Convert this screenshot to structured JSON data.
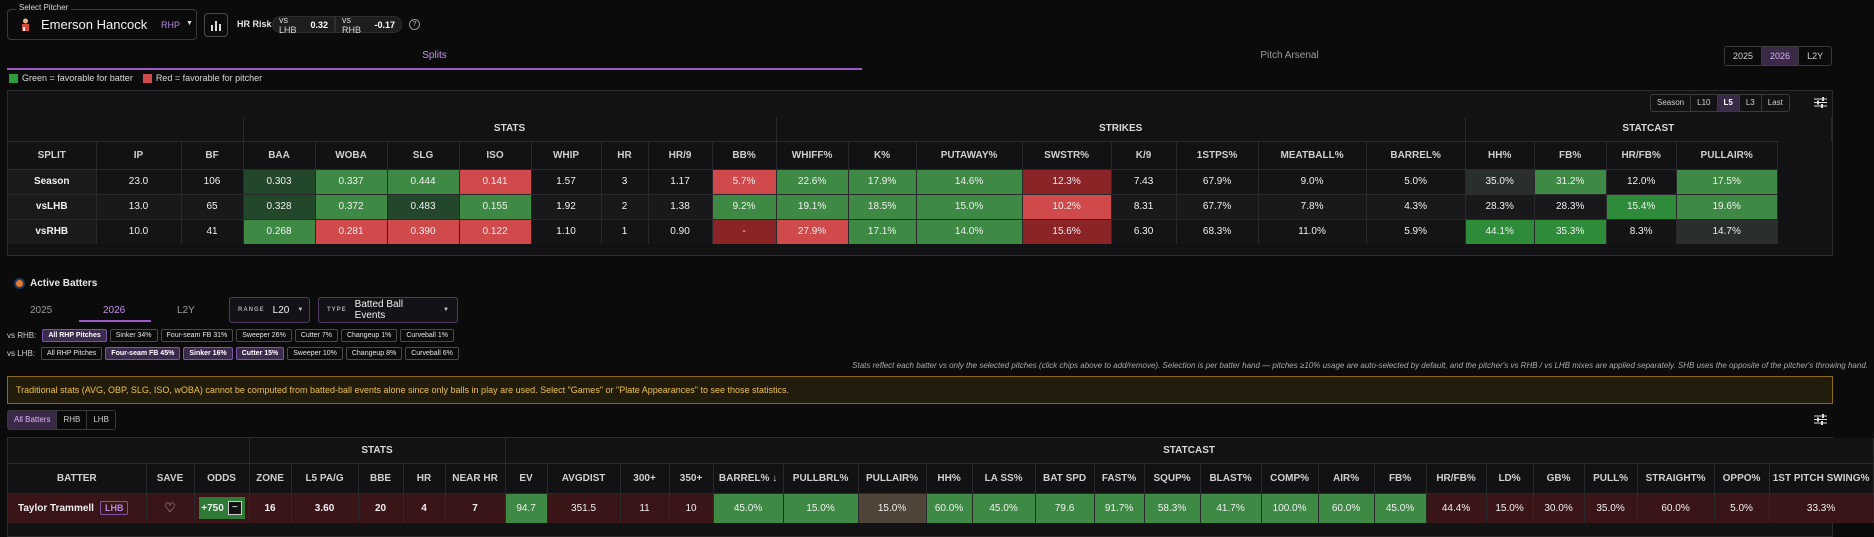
{
  "pitcher": {
    "legend": "Select Pitcher",
    "name": "Emerson Hancock",
    "hand": "RHP",
    "hr_risk_label": "HR Risk",
    "risk_lhb_label": "vs LHB",
    "risk_lhb_value": "0.32",
    "risk_rhb_label": "vs RHB",
    "risk_rhb_value": "-0.17"
  },
  "main_tabs": {
    "splits": "Splits",
    "arsenal": "Pitch Arsenal"
  },
  "season_years": [
    "2025",
    "2026",
    "L2Y"
  ],
  "legend": {
    "green": "Green = favorable for batter",
    "red": "Red = favorable for pitcher"
  },
  "colors": {
    "green_bright": "#2e8b3a",
    "green_mid": "#3e8a45",
    "green_dark": "#23472a",
    "red_bright": "#d0494b",
    "red_dark": "#8a2427",
    "neutral": "#17171a",
    "accent": "#9b59c9"
  },
  "split_ranges": [
    "Season",
    "L10",
    "L5",
    "L3",
    "Last"
  ],
  "splits": {
    "groups": [
      "STATS",
      "STRIKES",
      "STATCAST"
    ],
    "columns": [
      "SPLIT",
      "IP",
      "BF",
      "BAA",
      "WOBA",
      "SLG",
      "ISO",
      "WHIP",
      "HR",
      "HR/9",
      "BB%",
      "WHIFF%",
      "K%",
      "PUTAWAY%",
      "SWSTR%",
      "K/9",
      "1STPS%",
      "MEATBALL%",
      "BARREL%",
      "HH%",
      "FB%",
      "HR/FB%",
      "PULLAIR%"
    ],
    "rows": [
      {
        "cells": [
          "Season",
          "23.0",
          "106",
          "0.303",
          "0.337",
          "0.444",
          "0.141",
          "1.57",
          "3",
          "1.17",
          "5.7%",
          "22.6%",
          "17.9%",
          "14.6%",
          "12.3%",
          "7.43",
          "67.9%",
          "9.0%",
          "5.0%",
          "35.0%",
          "31.2%",
          "12.0%",
          "17.5%"
        ],
        "tones": [
          "",
          "",
          "",
          "gd",
          "gm",
          "gm",
          "rb",
          "",
          "",
          "",
          "rb",
          "gm",
          "gm",
          "gm",
          "rd",
          "",
          "",
          "",
          "",
          "n2",
          "gm",
          "",
          "gm"
        ]
      },
      {
        "cells": [
          "vsLHB",
          "13.0",
          "65",
          "0.328",
          "0.372",
          "0.483",
          "0.155",
          "1.92",
          "2",
          "1.38",
          "9.2%",
          "19.1%",
          "18.5%",
          "15.0%",
          "10.2%",
          "8.31",
          "67.7%",
          "7.8%",
          "4.3%",
          "28.3%",
          "28.3%",
          "15.4%",
          "19.6%"
        ],
        "tones": [
          "",
          "",
          "",
          "gd",
          "gm",
          "gd",
          "gm",
          "",
          "",
          "",
          "gm",
          "gm",
          "gm",
          "gm",
          "rb",
          "",
          "",
          "",
          "",
          "",
          "",
          "gb",
          "gm"
        ]
      },
      {
        "cells": [
          "vsRHB",
          "10.0",
          "41",
          "0.268",
          "0.281",
          "0.390",
          "0.122",
          "1.10",
          "1",
          "0.90",
          "-",
          "27.9%",
          "17.1%",
          "14.0%",
          "15.6%",
          "6.30",
          "68.3%",
          "11.0%",
          "5.9%",
          "44.1%",
          "35.3%",
          "8.3%",
          "14.7%"
        ],
        "tones": [
          "",
          "",
          "",
          "gm",
          "rb",
          "rb",
          "rb",
          "",
          "",
          "",
          "rd",
          "rb",
          "gm",
          "gm",
          "rd",
          "",
          "",
          "",
          "",
          "gb",
          "gb",
          "",
          "n2"
        ]
      }
    ]
  },
  "active_batters": {
    "title": "Active Batters",
    "years": [
      "2025",
      "2026",
      "L2Y"
    ],
    "range_key": "RANGE",
    "range_value": "L20",
    "type_key": "TYPE",
    "type_value": "Batted Ball Events",
    "vs_rhb_label": "vs RHB:",
    "vs_rhb_chips": [
      {
        "text": "All RHP Pitches",
        "on": true
      },
      {
        "text": "Sinker 34%",
        "on": false
      },
      {
        "text": "Four-seam FB 31%",
        "on": false
      },
      {
        "text": "Sweeper 26%",
        "on": false
      },
      {
        "text": "Cutter 7%",
        "on": false
      },
      {
        "text": "Changeup 1%",
        "on": false
      },
      {
        "text": "Curveball 1%",
        "on": false
      }
    ],
    "vs_lhb_label": "vs LHB:",
    "vs_lhb_chips": [
      {
        "text": "All RHP Pitches",
        "on": false
      },
      {
        "text": "Four-seam FB 45%",
        "on": true
      },
      {
        "text": "Sinker 16%",
        "on": true
      },
      {
        "text": "Cutter 15%",
        "on": true
      },
      {
        "text": "Sweeper 10%",
        "on": false
      },
      {
        "text": "Changeup 8%",
        "on": false
      },
      {
        "text": "Curveball 6%",
        "on": false
      }
    ],
    "note": "Stats reflect each batter vs only the selected pitches (click chips above to add/remove). Selection is per batter hand — pitches ≥10% usage are auto-selected by default, and the pitcher's vs RHB / vs LHB mixes are applied separately. SHB uses the opposite of the pitcher's throwing hand.",
    "warning": "Traditional stats (AVG, OBP, SLG, ISO, wOBA) cannot be computed from batted-ball events alone since only balls in play are used. Select \"Games\" or \"Plate Appearances\" to see those statistics.",
    "hand_filters": [
      "All Batters",
      "RHB",
      "LHB"
    ]
  },
  "batters_table": {
    "groups": [
      "STATS",
      "STATCAST"
    ],
    "columns": [
      "BATTER",
      "SAVE",
      "ODDS",
      "ZONE",
      "L5 PA/G",
      "BBE",
      "HR",
      "NEAR HR",
      "EV",
      "AVGDIST",
      "300+",
      "350+",
      "BARREL% ↓",
      "PULLBRL%",
      "PULLAIR%",
      "HH%",
      "LA SS%",
      "BAT SPD",
      "FAST%",
      "SQUP%",
      "BLAST%",
      "COMP%",
      "AIR%",
      "FB%",
      "HR/FB%",
      "LD%",
      "GB%",
      "PULL%",
      "STRAIGHT%",
      "OPPO%",
      "1ST PITCH SWING%"
    ],
    "rows": [
      {
        "name": "Taylor Trammell",
        "hand": "LHB",
        "odds": "+750",
        "cells": [
          "16",
          "3.60",
          "20",
          "4",
          "7",
          "94.7",
          "351.5",
          "11",
          "10",
          "45.0%",
          "15.0%",
          "15.0%",
          "60.0%",
          "45.0%",
          "79.6",
          "91.7%",
          "58.3%",
          "41.7%",
          "100.0%",
          "60.0%",
          "45.0%",
          "44.4%",
          "15.0%",
          "30.0%",
          "35.0%",
          "60.0%",
          "5.0%",
          "33.3%"
        ],
        "tones": [
          "",
          "",
          "",
          "",
          "",
          "gm",
          "",
          "",
          "",
          "gm",
          "gm",
          "bw",
          "gm",
          "gm",
          "gm",
          "gm",
          "gm",
          "gm",
          "gm",
          "gm",
          "gm",
          "",
          "",
          "",
          "",
          "",
          "",
          ""
        ]
      }
    ]
  }
}
